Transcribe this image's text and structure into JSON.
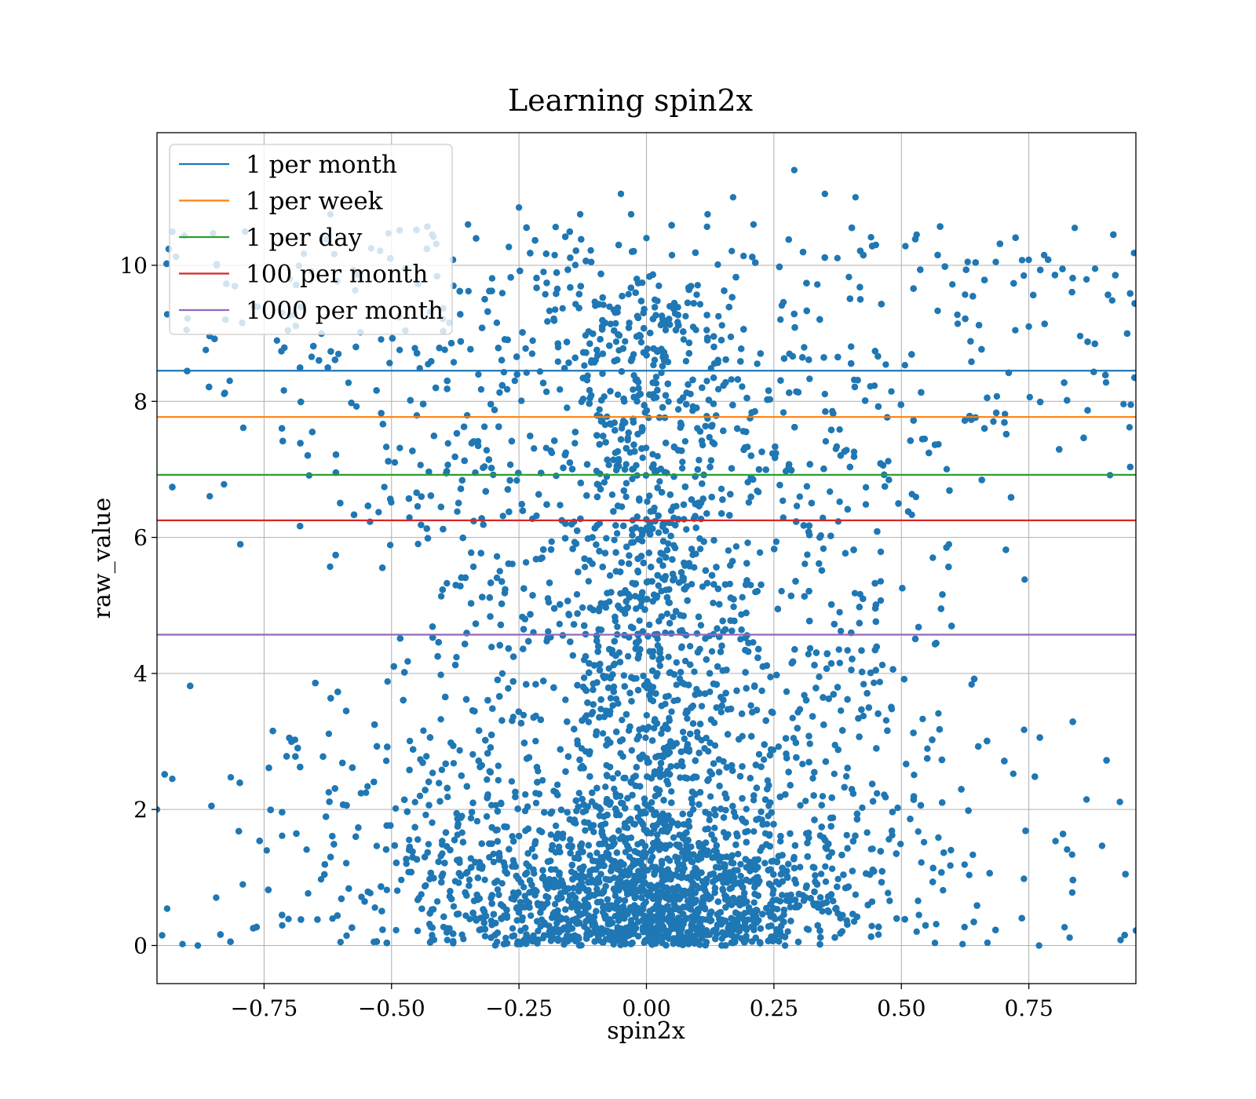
{
  "chart_data": {
    "type": "scatter",
    "title": "Learning spin2x",
    "xlabel": "spin2x",
    "ylabel": "raw_value",
    "xlim": [
      -0.96,
      0.96
    ],
    "ylim": [
      -0.56,
      11.95
    ],
    "xticks": [
      -0.75,
      -0.5,
      -0.25,
      0.0,
      0.25,
      0.5,
      0.75
    ],
    "xtick_labels": [
      "−0.75",
      "−0.50",
      "−0.25",
      "0.00",
      "0.25",
      "0.50",
      "0.75"
    ],
    "yticks": [
      0,
      2,
      4,
      6,
      8,
      10
    ],
    "ytick_labels": [
      "0",
      "2",
      "4",
      "6",
      "8",
      "10"
    ],
    "grid": true,
    "legend_position": "top-left",
    "point_color": "#1f77b4",
    "series": [
      {
        "name": "",
        "color": "#1f77b4",
        "x_range": [
          -0.96,
          0.96
        ],
        "y_range": [
          0.0,
          11.4
        ],
        "samples": [
          [
            -0.94,
            9.28
          ],
          [
            -0.9,
            9.22
          ],
          [
            -0.85,
            10.47
          ],
          [
            -0.77,
            9.4
          ],
          [
            -0.7,
            9.8
          ],
          [
            -0.62,
            10.75
          ],
          [
            -0.54,
            10.25
          ],
          [
            -0.42,
            10.45
          ],
          [
            -0.35,
            10.6
          ],
          [
            -0.25,
            10.85
          ],
          [
            -0.18,
            10.15
          ],
          [
            -0.13,
            10.75
          ],
          [
            -0.05,
            11.05
          ],
          [
            -0.03,
            10.75
          ],
          [
            0.0,
            10.4
          ],
          [
            0.05,
            10.15
          ],
          [
            0.12,
            10.75
          ],
          [
            0.17,
            11.0
          ],
          [
            0.21,
            10.6
          ],
          [
            0.29,
            11.4
          ],
          [
            0.35,
            11.05
          ],
          [
            0.41,
            11.0
          ],
          [
            0.45,
            10.3
          ],
          [
            0.53,
            10.45
          ],
          [
            0.63,
            10.05
          ],
          [
            0.75,
            9.1
          ],
          [
            0.78,
            10.15
          ],
          [
            0.84,
            10.55
          ],
          [
            0.88,
            9.95
          ],
          [
            0.95,
            7.95
          ],
          [
            -0.95,
            0.15
          ],
          [
            -0.93,
            2.45
          ],
          [
            -0.91,
            0.02
          ],
          [
            -0.88,
            0.0
          ],
          [
            -0.6,
            0.05
          ],
          [
            0.62,
            0.02
          ],
          [
            0.77,
            0.0
          ],
          [
            0.93,
            0.08
          ],
          [
            0.96,
            0.22
          ],
          [
            -0.96,
            2.0
          ]
        ]
      }
    ],
    "hlines": [
      {
        "name": "1 per month",
        "y": 8.45,
        "color": "#1f77b4"
      },
      {
        "name": "1 per week",
        "y": 7.77,
        "color": "#ff7f0e"
      },
      {
        "name": "1 per day",
        "y": 6.92,
        "color": "#2ca02c"
      },
      {
        "name": "100 per month",
        "y": 6.25,
        "color": "#d62728"
      },
      {
        "name": "1000 per month",
        "y": 4.57,
        "color": "#9467bd"
      }
    ]
  }
}
